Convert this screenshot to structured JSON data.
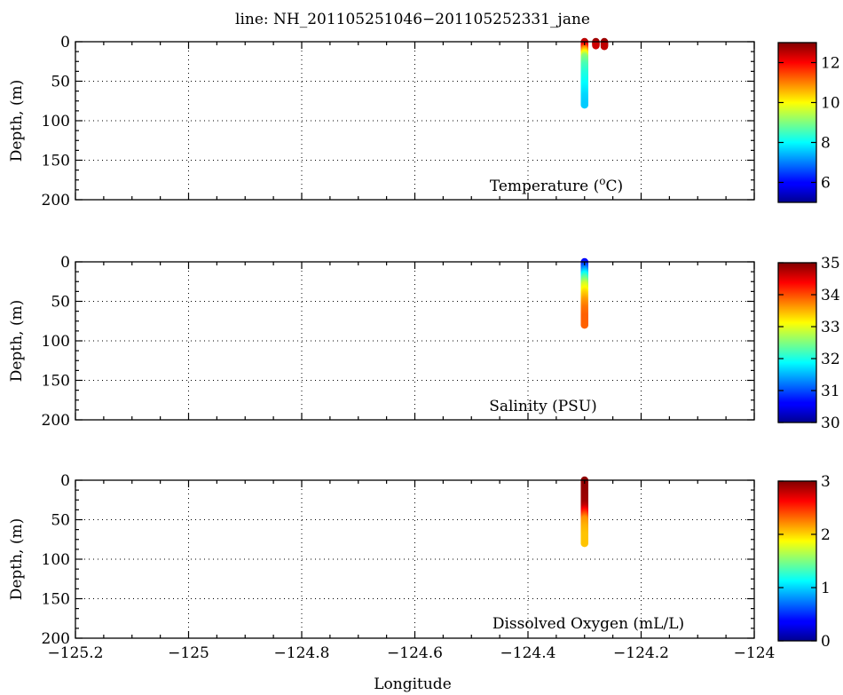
{
  "chart_data": {
    "title": "line: NH_201105251046−201105252331_jane",
    "xlabel": "Longitude",
    "xlim": [
      -125.2,
      -124.0
    ],
    "x_ticks": [
      -125.2,
      -125.0,
      -124.8,
      -124.6,
      -124.4,
      -124.2,
      -124.0
    ],
    "x_tick_labels": [
      "−125.2",
      "−125",
      "−124.8",
      "−124.6",
      "−124.4",
      "−124.2",
      "−124"
    ],
    "grid": true,
    "panels": [
      {
        "type": "scatter",
        "variable": "Temperature",
        "label_text": "Temperature (",
        "label_sup": "o",
        "label_tail": "C)",
        "ylabel": "Depth, (m)",
        "ylim": [
          200,
          0
        ],
        "y_ticks": [
          0,
          50,
          100,
          150,
          200
        ],
        "colorbar": {
          "min": 5,
          "max": 13,
          "ticks": [
            6,
            8,
            10,
            12
          ]
        },
        "profiles": [
          {
            "x": -124.3,
            "points": [
              [
                0,
                12.6
              ],
              [
                5,
                12.2
              ],
              [
                10,
                10.9
              ],
              [
                20,
                9.1
              ],
              [
                30,
                8.6
              ],
              [
                40,
                8.3
              ],
              [
                50,
                8.1
              ],
              [
                60,
                7.9
              ],
              [
                70,
                7.7
              ],
              [
                80,
                7.6
              ]
            ]
          },
          {
            "x": -124.28,
            "points": [
              [
                0,
                12.8
              ],
              [
                3,
                12.6
              ],
              [
                5,
                12.4
              ]
            ]
          },
          {
            "x": -124.265,
            "points": [
              [
                0,
                12.8
              ],
              [
                3,
                12.7
              ],
              [
                6,
                12.5
              ]
            ]
          }
        ]
      },
      {
        "type": "scatter",
        "variable": "Salinity",
        "label_text": "Salinity (PSU)",
        "ylabel": "Depth, (m)",
        "ylim": [
          200,
          0
        ],
        "y_ticks": [
          0,
          50,
          100,
          150,
          200
        ],
        "colorbar": {
          "min": 30,
          "max": 35,
          "ticks": [
            30,
            31,
            32,
            33,
            34,
            35
          ]
        },
        "profiles": [
          {
            "x": -124.3,
            "points": [
              [
                0,
                30.6
              ],
              [
                5,
                30.9
              ],
              [
                10,
                31.3
              ],
              [
                20,
                32.2
              ],
              [
                30,
                32.9
              ],
              [
                40,
                33.3
              ],
              [
                50,
                33.6
              ],
              [
                60,
                33.8
              ],
              [
                70,
                33.9
              ],
              [
                80,
                33.9
              ]
            ]
          }
        ]
      },
      {
        "type": "scatter",
        "variable": "Dissolved Oxygen",
        "label_text": "Dissolved Oxygen (mL/L)",
        "ylabel": "Depth, (m)",
        "ylim": [
          200,
          0
        ],
        "y_ticks": [
          0,
          50,
          100,
          150,
          200
        ],
        "colorbar": {
          "min": 0,
          "max": 3,
          "ticks": [
            0,
            1,
            2,
            3
          ]
        },
        "profiles": [
          {
            "x": -124.3,
            "points": [
              [
                0,
                2.95
              ],
              [
                10,
                2.95
              ],
              [
                20,
                2.93
              ],
              [
                30,
                2.9
              ],
              [
                35,
                2.8
              ],
              [
                40,
                2.6
              ],
              [
                45,
                2.4
              ],
              [
                50,
                2.2
              ],
              [
                60,
                2.1
              ],
              [
                70,
                2.05
              ],
              [
                80,
                2.05
              ]
            ]
          }
        ]
      }
    ]
  }
}
